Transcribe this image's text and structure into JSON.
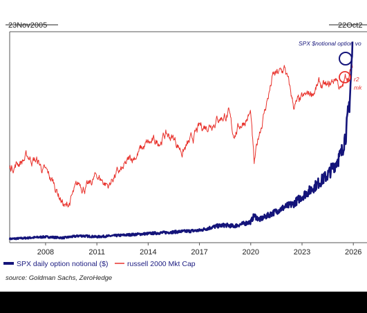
{
  "chart_data": {
    "type": "line",
    "range_start_label": "23Nov2005",
    "range_end_label": "22Oct2",
    "x_ticks": [
      "2008",
      "2011",
      "2014",
      "2017",
      "2020",
      "2023",
      "2026"
    ],
    "xlim": [
      2005.9,
      2026.8
    ],
    "grid": false,
    "legend_position": "bottom",
    "series": [
      {
        "name": "SPX daily option notional ($)",
        "color": "#14147a",
        "axis": "left",
        "ylim": [
          0,
          100
        ],
        "x": [
          2005.9,
          2007.0,
          2008.0,
          2009.0,
          2010.0,
          2011.0,
          2012.0,
          2013.0,
          2014.0,
          2015.0,
          2016.0,
          2017.0,
          2018.0,
          2018.5,
          2019.0,
          2019.5,
          2020.0,
          2020.2,
          2020.5,
          2021.0,
          2021.5,
          2022.0,
          2022.5,
          2023.0,
          2023.5,
          2024.0,
          2024.5,
          2025.0,
          2025.3,
          2025.6,
          2025.8,
          2025.95
        ],
        "values": [
          1,
          1.5,
          2,
          1.5,
          2.5,
          2,
          2.5,
          3,
          3.5,
          4,
          4.5,
          5,
          7,
          7.5,
          7,
          8,
          9,
          12,
          10,
          12,
          14,
          16,
          17.5,
          21,
          24,
          27.5,
          31,
          37,
          41,
          52,
          68,
          90
        ]
      },
      {
        "name": "russell 2000 Mkt Cap",
        "color": "#e8302a",
        "axis": "right",
        "ylim": [
          0,
          100
        ],
        "x": [
          2005.9,
          2006.5,
          2007.0,
          2007.5,
          2008.0,
          2008.5,
          2009.0,
          2009.2,
          2009.6,
          2010.0,
          2010.5,
          2011.0,
          2011.7,
          2012.0,
          2012.5,
          2013.0,
          2013.5,
          2014.0,
          2014.5,
          2015.0,
          2015.5,
          2016.0,
          2016.5,
          2017.0,
          2017.5,
          2018.0,
          2018.7,
          2018.95,
          2019.5,
          2020.0,
          2020.2,
          2020.5,
          2021.0,
          2021.3,
          2021.8,
          2022.0,
          2022.5,
          2023.0,
          2023.5,
          2024.0,
          2024.5,
          2025.0,
          2025.3,
          2025.6,
          2025.95
        ],
        "values": [
          36,
          39,
          41,
          39,
          33,
          28,
          19,
          16,
          22,
          28,
          26,
          32,
          27,
          32,
          34,
          40,
          44,
          47,
          48,
          52,
          50,
          44,
          48,
          55,
          57,
          60,
          62,
          52,
          58,
          62,
          36,
          53,
          70,
          80,
          82,
          84,
          66,
          68,
          72,
          76,
          74,
          80,
          73,
          80,
          84
        ]
      }
    ],
    "annotations": [
      {
        "text": "SPX $notional option vo",
        "color": "#14147a",
        "shape": "circle"
      },
      {
        "text": "r2",
        "color": "#e8302a",
        "shape": "circle"
      },
      {
        "text": "mk",
        "color": "#e8302a",
        "shape": "none"
      }
    ]
  },
  "source": "source: Goldman Sachs, ZeroHedge"
}
